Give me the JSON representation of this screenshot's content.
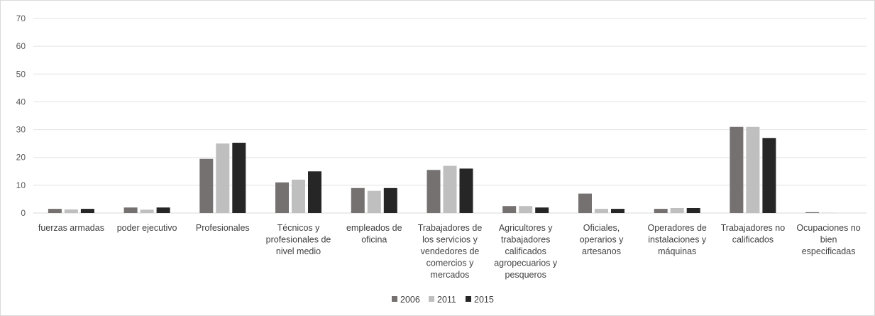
{
  "chart_data": {
    "type": "bar",
    "title": "",
    "xlabel": "",
    "ylabel": "",
    "ylim": [
      0,
      70
    ],
    "yticks": [
      0,
      10,
      20,
      30,
      40,
      50,
      60,
      70
    ],
    "grid": true,
    "legend_position": "bottom",
    "categories": [
      [
        "fuerzas armadas"
      ],
      [
        "poder ejecutivo"
      ],
      [
        "Profesionales"
      ],
      [
        "Técnicos y",
        "profesionales de",
        "nivel medio"
      ],
      [
        "empleados de",
        "oficina"
      ],
      [
        "Trabajadores de",
        "los servicios y",
        "vendedores de",
        "comercios y",
        "mercados"
      ],
      [
        "Agricultores y",
        "trabajadores",
        "calificados",
        "agropecuarios y",
        "pesqueros"
      ],
      [
        "Oficiales,",
        "operarios y",
        "artesanos"
      ],
      [
        "Operadores de",
        "instalaciones y",
        "máquinas"
      ],
      [
        "Trabajadores no",
        "calificados"
      ],
      [
        "Ocupaciones no",
        "bien",
        "especificadas"
      ]
    ],
    "series": [
      {
        "name": "2006",
        "color": "#767171",
        "values": [
          1.5,
          2.0,
          19.5,
          11.0,
          9.0,
          15.5,
          2.5,
          7.0,
          1.5,
          31.0,
          0.3
        ]
      },
      {
        "name": "2011",
        "color": "#bfbfbf",
        "values": [
          1.3,
          1.2,
          25.0,
          12.0,
          8.0,
          17.0,
          2.5,
          1.5,
          1.8,
          31.0,
          0.1
        ]
      },
      {
        "name": "2015",
        "color": "#262626",
        "values": [
          1.5,
          2.0,
          25.3,
          15.0,
          9.0,
          16.0,
          2.0,
          1.5,
          1.8,
          27.0,
          0.0
        ]
      }
    ]
  }
}
